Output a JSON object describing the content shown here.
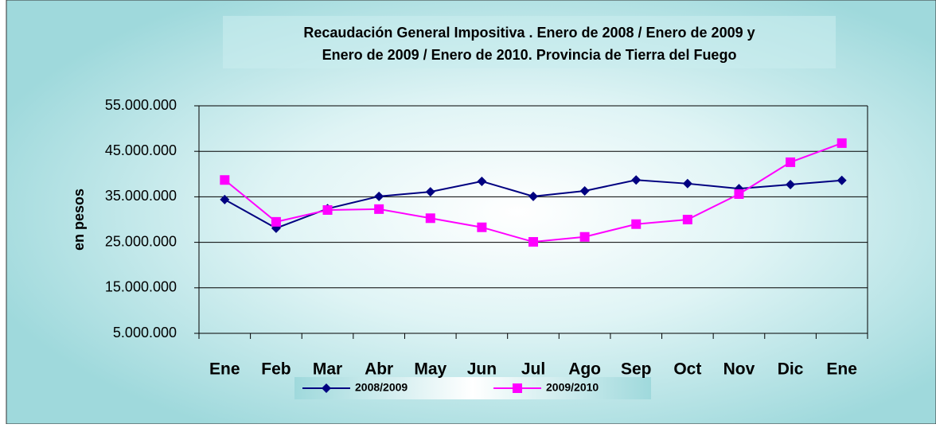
{
  "chart_data": {
    "type": "line",
    "title": [
      "Recaudación General Impositiva . Enero de 2008 / Enero de 2009  y",
      "Enero de 2009 / Enero de 2010. Provincia de Tierra del Fuego"
    ],
    "y_label": "en pesos",
    "categories": [
      "Ene",
      "Feb",
      "Mar",
      "Abr",
      "May",
      "Jun",
      "Jul",
      "Ago",
      "Sep",
      "Oct",
      "Nov",
      "Dic",
      "Ene"
    ],
    "series": [
      {
        "name": "2008/2009",
        "color": "#000080",
        "marker": "diamond",
        "values": [
          34400000,
          28100000,
          32400000,
          35100000,
          36100000,
          38400000,
          35100000,
          36300000,
          38700000,
          37900000,
          36800000,
          37700000,
          38600000
        ]
      },
      {
        "name": "2009/2010",
        "color": "#ff00ff",
        "marker": "square",
        "values": [
          38700000,
          29500000,
          32100000,
          32300000,
          30300000,
          28300000,
          25100000,
          26200000,
          29000000,
          30000000,
          35600000,
          42600000,
          46800000
        ]
      }
    ],
    "ylim": [
      5000000,
      55000000
    ],
    "yticks": [
      {
        "value": 5000000,
        "label": "5.000.000"
      },
      {
        "value": 15000000,
        "label": "15.000.000"
      },
      {
        "value": 25000000,
        "label": "25.000.000"
      },
      {
        "value": 35000000,
        "label": "35.000.000"
      },
      {
        "value": 45000000,
        "label": "45.000.000"
      },
      {
        "value": 55000000,
        "label": "55.000.000"
      }
    ],
    "grid": true,
    "legend": "bottom"
  }
}
